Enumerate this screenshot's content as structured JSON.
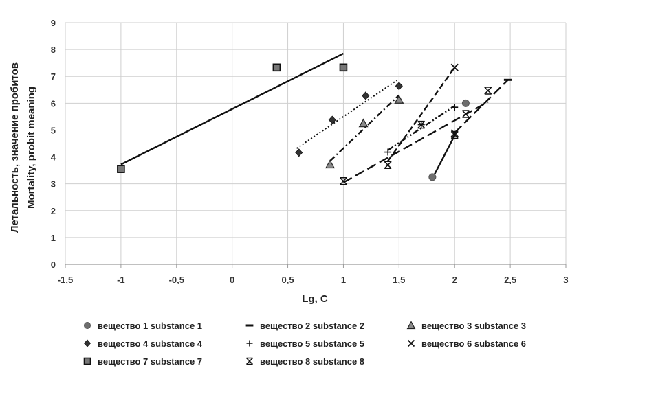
{
  "chart_data": {
    "type": "scatter",
    "xlabel": "Lg, C",
    "ylabel_line1": "Летальность, значение пробитов",
    "ylabel_line2": "Mortality, probit meaning",
    "xlim": [
      -1.5,
      3
    ],
    "ylim": [
      0,
      9
    ],
    "xticks": [
      -1.5,
      -1,
      -0.5,
      0,
      0.5,
      1,
      1.5,
      2,
      2.5,
      3
    ],
    "xtick_labels": [
      "-1,5",
      "-1",
      "-0,5",
      "0",
      "0,5",
      "1",
      "1,5",
      "2",
      "2,5",
      "3"
    ],
    "yticks": [
      0,
      1,
      2,
      3,
      4,
      5,
      6,
      7,
      8,
      9
    ],
    "ytick_labels": [
      "0",
      "1",
      "2",
      "3",
      "4",
      "5",
      "6",
      "7",
      "8",
      "9"
    ],
    "grid": true,
    "legend_position": "bottom",
    "series": [
      {
        "name": "вещество 1 substance 1",
        "marker": "circle",
        "line_style": "solid",
        "points": [
          [
            1.8,
            3.25
          ],
          [
            2.1,
            6.0
          ]
        ],
        "trend": [
          [
            1.8,
            3.2
          ],
          [
            2.0,
            4.8
          ]
        ]
      },
      {
        "name": "вещество 2 substance 2",
        "marker": "dash",
        "line_style": "long-dash",
        "points": [
          [
            2.48,
            6.87
          ]
        ],
        "trend": [
          [
            2.0,
            4.9
          ],
          [
            2.48,
            6.87
          ]
        ]
      },
      {
        "name": "вещество 3 substance 3",
        "marker": "triangle",
        "line_style": "dash-dot",
        "points": [
          [
            0.88,
            3.72
          ],
          [
            1.18,
            5.25
          ],
          [
            1.5,
            6.13
          ]
        ],
        "trend": [
          [
            0.88,
            3.85
          ],
          [
            1.5,
            6.3
          ]
        ]
      },
      {
        "name": "вещество 4 substance 4",
        "marker": "diamond",
        "line_style": "dotted",
        "points": [
          [
            0.6,
            4.16
          ],
          [
            0.9,
            5.38
          ],
          [
            1.2,
            6.28
          ],
          [
            1.5,
            6.64
          ]
        ],
        "trend": [
          [
            0.58,
            4.32
          ],
          [
            1.48,
            6.85
          ]
        ]
      },
      {
        "name": "вещество 5 substance 5",
        "marker": "plus",
        "line_style": "dash-dot-dot",
        "points": [
          [
            1.4,
            4.18
          ],
          [
            1.7,
            5.2
          ],
          [
            2.0,
            5.85
          ]
        ],
        "trend": [
          [
            1.4,
            4.25
          ],
          [
            2.0,
            5.9
          ]
        ]
      },
      {
        "name": "вещество 6 substance 6",
        "marker": "x",
        "line_style": "dashed",
        "points": [
          [
            2.0,
            7.33
          ],
          [
            2.0,
            4.88
          ]
        ],
        "trend": [
          [
            1.4,
            3.85
          ],
          [
            2.0,
            7.33
          ]
        ]
      },
      {
        "name": "вещество 7 substance 7",
        "marker": "square",
        "line_style": "solid",
        "points": [
          [
            -1.0,
            3.55
          ],
          [
            0.4,
            7.33
          ],
          [
            1.0,
            7.33
          ]
        ],
        "trend": [
          [
            -1.0,
            3.72
          ],
          [
            1.0,
            7.85
          ]
        ]
      },
      {
        "name": "вещество 8 substance 8",
        "marker": "star",
        "line_style": "long-dash",
        "points": [
          [
            1.0,
            3.1
          ],
          [
            1.4,
            3.7
          ],
          [
            1.7,
            5.2
          ],
          [
            2.0,
            4.82
          ],
          [
            2.1,
            5.6
          ],
          [
            2.3,
            6.47
          ]
        ],
        "trend": [
          [
            1.0,
            3.05
          ],
          [
            2.3,
            6.05
          ]
        ]
      }
    ]
  },
  "colors": {
    "marker_fill": "#6e6e6e",
    "marker_dark": "#333333",
    "line": "#111111",
    "grid": "#cfcfcf",
    "axis": "#9a9a9a"
  }
}
